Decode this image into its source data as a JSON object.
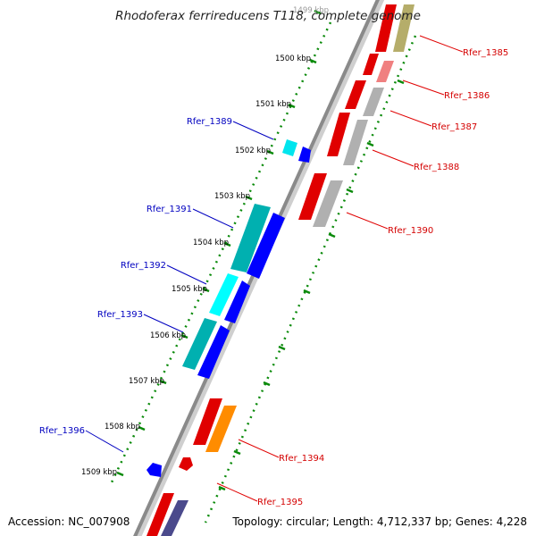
{
  "title": "Rhodoferax ferrireducens T118, complete genome",
  "footer": {
    "accession": "Accession: NC_007908",
    "topology": "Topology: circular; Length: 4,712,337 bp; Genes: 4,228"
  },
  "colors": {
    "backbone": "#8a8a8a",
    "tick": "#0a8a0a",
    "label_forward": "#d40000",
    "label_reverse": "#0000c0",
    "leader": "#e00000",
    "leader_reverse": "#0000c0"
  },
  "kbp_ticks": [
    "1499 kbp",
    "1500 kbp",
    "1501 kbp",
    "1502 kbp",
    "1503 kbp",
    "1504 kbp",
    "1505 kbp",
    "1506 kbp",
    "1507 kbp",
    "1508 kbp",
    "1509 kbp"
  ],
  "genes_forward": [
    {
      "id": "Rfer_1385",
      "colors": [
        "#e00000",
        "#b5ad6a"
      ]
    },
    {
      "id": "Rfer_1386",
      "colors": [
        "#e00000",
        "#f08080"
      ]
    },
    {
      "id": "Rfer_1387",
      "colors": [
        "#e00000",
        "#b0b0b0"
      ]
    },
    {
      "id": "Rfer_1388",
      "colors": [
        "#e00000",
        "#b0b0b0"
      ]
    },
    {
      "id": "Rfer_1390",
      "colors": [
        "#e00000",
        "#b0b0b0"
      ]
    },
    {
      "id": "Rfer_1394",
      "colors": [
        "#e00000",
        "#ff8c00"
      ]
    },
    {
      "id": "Rfer_1395",
      "colors": [
        "#e00000"
      ]
    }
  ],
  "genes_reverse": [
    {
      "id": "Rfer_1389",
      "colors": [
        "#00ffff",
        "#0000ff"
      ]
    },
    {
      "id": "Rfer_1391",
      "colors": [
        "#00b0b0",
        "#0000ff"
      ]
    },
    {
      "id": "Rfer_1392",
      "colors": [
        "#00ffff",
        "#0000ff"
      ]
    },
    {
      "id": "Rfer_1393",
      "colors": [
        "#00b0b0",
        "#0000ff"
      ]
    },
    {
      "id": "Rfer_1396",
      "colors": [
        "#0000ff"
      ]
    }
  ]
}
